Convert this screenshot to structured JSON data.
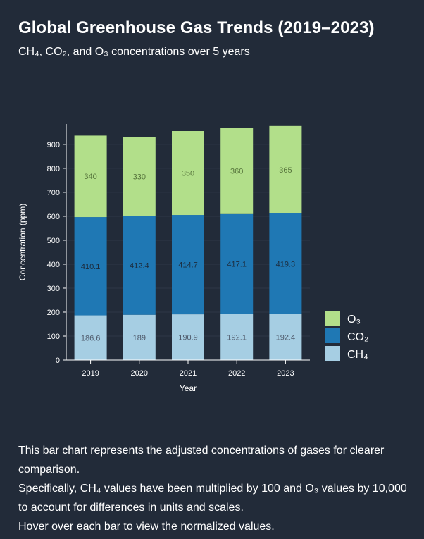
{
  "header": {
    "title": "Global Greenhouse Gas Trends (2019–2023)",
    "subtitle": "CH₄, CO₂, and O₃ concentrations over 5 years"
  },
  "chart_data": {
    "type": "bar",
    "stacked": true,
    "categories": [
      "2019",
      "2020",
      "2021",
      "2022",
      "2023"
    ],
    "series": [
      {
        "name": "CH₄",
        "color": "#a6cee3",
        "label_color": "#4f5a6b",
        "values": [
          186.6,
          189,
          190.9,
          192.1,
          192.4
        ]
      },
      {
        "name": "CO₂",
        "color": "#1f78b4",
        "label_color": "#1c2b3c",
        "values": [
          410.1,
          412.4,
          414.7,
          417.1,
          419.3
        ]
      },
      {
        "name": "O₃",
        "color": "#b2df8a",
        "label_color": "#56743c",
        "values": [
          340,
          330,
          350,
          360,
          365
        ]
      }
    ],
    "xlabel": "Year",
    "ylabel": "Concentration (ppm)",
    "ylim": [
      0,
      985
    ],
    "yticks": [
      0,
      100,
      200,
      300,
      400,
      500,
      600,
      700,
      800,
      900
    ],
    "legend_position": "right",
    "legend_order": [
      "O₃",
      "CO₂",
      "CH₄"
    ],
    "grid": true
  },
  "description": {
    "line1": "This bar chart represents the adjusted concentrations of gases for clearer comparison.",
    "line2": "Specifically, CH₄ values have been multiplied by 100 and O₃ values by 10,000 to account for differences in units and scales.",
    "line3": "Hover over each bar to view the normalized values."
  }
}
